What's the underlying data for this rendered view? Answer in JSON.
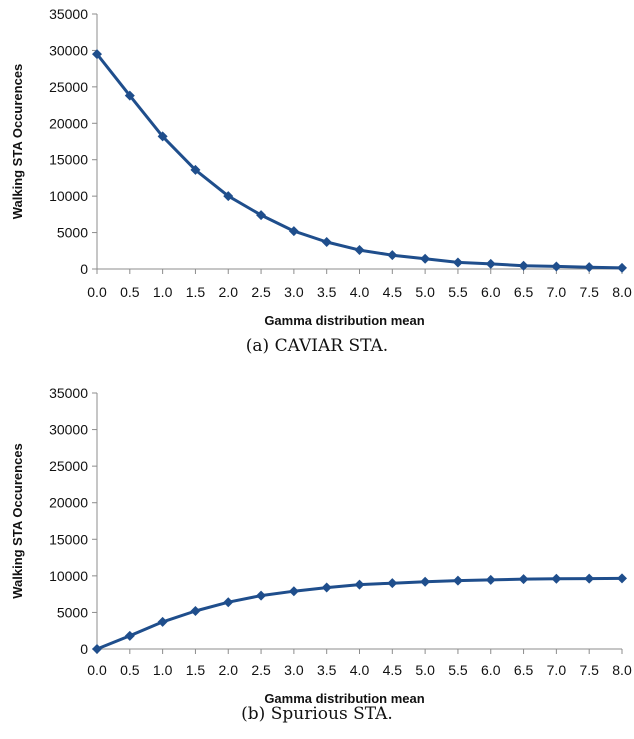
{
  "chart_data": [
    {
      "type": "line",
      "caption": "(a) CAVIAR STA.",
      "xlabel": "Gamma distribution mean",
      "ylabel": "Walking STA Occurences",
      "x": [
        0.0,
        0.5,
        1.0,
        1.5,
        2.0,
        2.5,
        3.0,
        3.5,
        4.0,
        4.5,
        5.0,
        5.5,
        6.0,
        6.5,
        7.0,
        7.5,
        8.0
      ],
      "x_tick_labels": [
        "0.0",
        "0.5",
        "1.0",
        "1.5",
        "2.0",
        "2.5",
        "3.0",
        "3.5",
        "4.0",
        "4.5",
        "5.0",
        "5.5",
        "6.0",
        "6.5",
        "7.0",
        "7.5",
        "8.0"
      ],
      "y_ticks": [
        0,
        5000,
        10000,
        15000,
        20000,
        25000,
        30000,
        35000
      ],
      "ylim": [
        0,
        35000
      ],
      "grid": false,
      "series": [
        {
          "values": [
            29500,
            23800,
            18200,
            13600,
            10000,
            7400,
            5200,
            3700,
            2600,
            1900,
            1400,
            900,
            700,
            450,
            350,
            250,
            150
          ],
          "color": "#1f4e8c"
        }
      ]
    },
    {
      "type": "line",
      "caption": "(b) Spurious STA.",
      "xlabel": "Gamma distribution mean",
      "ylabel": "Walking STA Occurences",
      "x": [
        0.0,
        0.5,
        1.0,
        1.5,
        2.0,
        2.5,
        3.0,
        3.5,
        4.0,
        4.5,
        5.0,
        5.5,
        6.0,
        6.5,
        7.0,
        7.5,
        8.0
      ],
      "x_tick_labels": [
        "0.0",
        "0.5",
        "1.0",
        "1.5",
        "2.0",
        "2.5",
        "3.0",
        "3.5",
        "4.0",
        "4.5",
        "5.0",
        "5.5",
        "6.0",
        "6.5",
        "7.0",
        "7.5",
        "8.0"
      ],
      "y_ticks": [
        0,
        5000,
        10000,
        15000,
        20000,
        25000,
        30000,
        35000
      ],
      "ylim": [
        0,
        35000
      ],
      "grid": false,
      "series": [
        {
          "values": [
            0,
            1800,
            3700,
            5200,
            6400,
            7300,
            7900,
            8400,
            8800,
            9000,
            9200,
            9350,
            9450,
            9550,
            9600,
            9620,
            9650
          ],
          "color": "#1f4e8c"
        }
      ]
    }
  ]
}
